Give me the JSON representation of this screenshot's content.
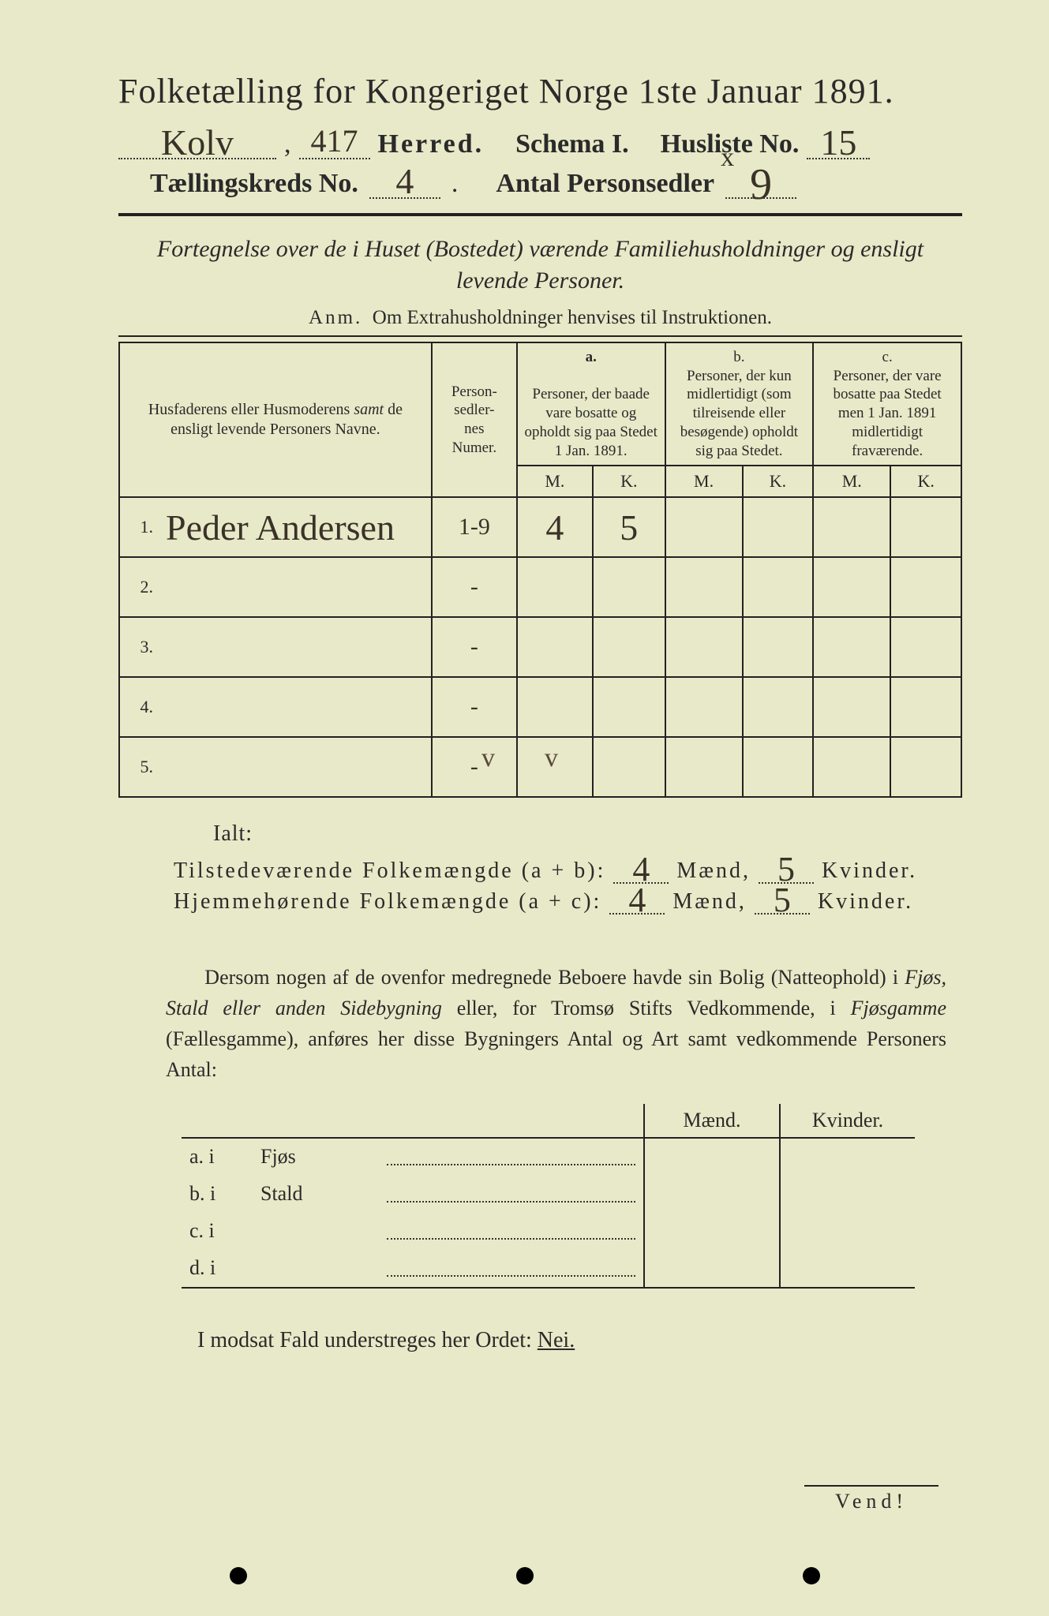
{
  "title": "Folketælling for Kongeriget Norge 1ste Januar 1891.",
  "header": {
    "herred_hw": "Kolv",
    "herred_num_hw": "417",
    "herred_label": "Herred.",
    "schema_label": "Schema I.",
    "husliste_label": "Husliste No.",
    "husliste_hw": "15",
    "kreds_label": "Tællingskreds No.",
    "kreds_hw": "4",
    "antal_label": "Antal Personsedler",
    "antal_strike": "x",
    "antal_hw": "9"
  },
  "subtitle": "Fortegnelse over de i Huset (Bostedet) værende Familiehusholdninger og ensligt levende Personer.",
  "anm_label": "Anm.",
  "anm_text": "Om Extrahusholdninger henvises til Instruktionen.",
  "columns": {
    "name": "Husfaderens eller Husmoderens samt de ensligt levende Personers Navne.",
    "numer": "Person-\nsedler-\nnes\nNumer.",
    "a_label": "a.",
    "a_text": "Personer, der baade vare bosatte og opholdt sig paa Stedet 1 Jan. 1891.",
    "b_label": "b.",
    "b_text": "Personer, der kun midlertidigt (som tilreisende eller besøgende) opholdt sig paa Stedet.",
    "c_label": "c.",
    "c_text": "Personer, der vare bosatte paa Stedet men 1 Jan. 1891 midlertidigt fraværende.",
    "M": "M.",
    "K": "K."
  },
  "rows": [
    {
      "n": "1.",
      "name": "Peder Andersen",
      "numer": "1-9",
      "aM": "4",
      "aK": "5",
      "bM": "",
      "bK": "",
      "cM": "",
      "cK": ""
    },
    {
      "n": "2.",
      "name": "",
      "numer": "-",
      "aM": "",
      "aK": "",
      "bM": "",
      "bK": "",
      "cM": "",
      "cK": ""
    },
    {
      "n": "3.",
      "name": "",
      "numer": "-",
      "aM": "",
      "aK": "",
      "bM": "",
      "bK": "",
      "cM": "",
      "cK": ""
    },
    {
      "n": "4.",
      "name": "",
      "numer": "-",
      "aM": "",
      "aK": "",
      "bM": "",
      "bK": "",
      "cM": "",
      "cK": ""
    },
    {
      "n": "5.",
      "name": "",
      "numer": "-",
      "aM": "",
      "aK": "",
      "bM": "",
      "bK": "",
      "cM": "",
      "cK": ""
    }
  ],
  "checks": {
    "a": "v",
    "b": "v"
  },
  "ialt": "Ialt:",
  "totals": {
    "line1_label": "Tilstedeværende Folkemængde (a + b):",
    "line2_label": "Hjemmehørende Folkemængde (a + c):",
    "maend": "Mænd,",
    "kvinder": "Kvinder.",
    "t_m": "4",
    "t_k": "5",
    "h_m": "4",
    "h_k": "5"
  },
  "para": "Dersom nogen af de ovenfor medregnede Beboere havde sin Bolig (Natteophold) i Fjøs, Stald eller anden Sidebygning eller, for Tromsø Stifts Vedkommende, i Fjøsgamme (Fællesgamme), anføres her disse Bygningers Antal og Art samt vedkommende Personers Antal:",
  "small": {
    "head_m": "Mænd.",
    "head_k": "Kvinder.",
    "rows": [
      {
        "lab": "a.  i",
        "name": "Fjøs"
      },
      {
        "lab": "b.  i",
        "name": "Stald"
      },
      {
        "lab": "c.  i",
        "name": ""
      },
      {
        "lab": "d.  i",
        "name": ""
      }
    ]
  },
  "nei_pre": "I modsat Fald understreges her Ordet:",
  "nei": "Nei.",
  "vend": "Vend!",
  "colors": {
    "paper": "#e8e9c8",
    "ink": "#2a2a2a",
    "handwriting": "#3a3228"
  },
  "typography": {
    "title_pt": 44,
    "body_pt": 26,
    "table_pt": 22,
    "handwriting_family": "cursive"
  }
}
